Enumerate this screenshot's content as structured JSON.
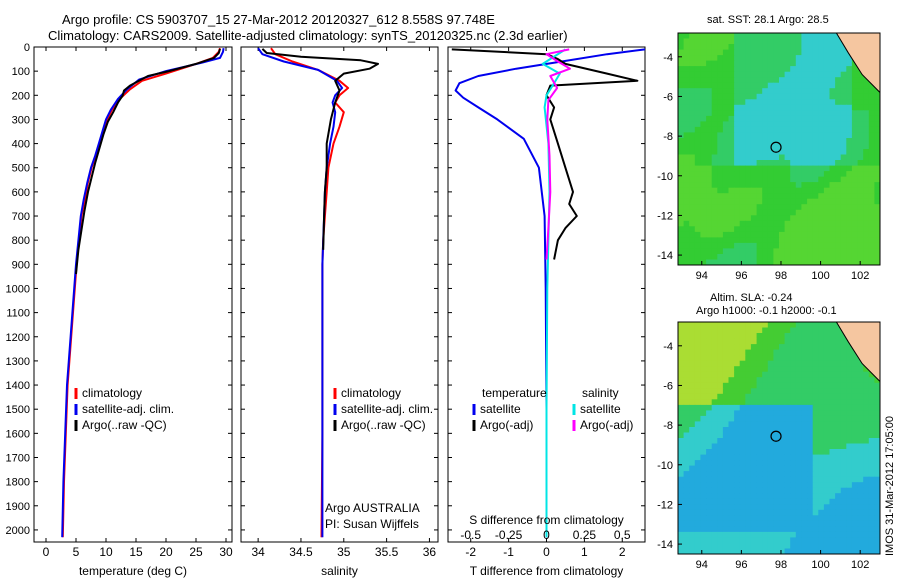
{
  "header": {
    "line1": "Argo profile: CS 5903707_15 27-Mar-2012 20120327_612 8.558S 97.748E",
    "line2": "Climatology: CARS2009. Satellite-adjusted climatology: synTS_20120325.nc (2.3d earlier)"
  },
  "side_stamp": "IMOS 31-Mar-2012 17:05:00",
  "colors": {
    "climatology": "#ff0000",
    "satellite": "#0000ee",
    "argo": "#000000",
    "salinity_satellite": "#00e5e5",
    "salinity_argo": "#ff00ff",
    "map_green": "#33cc33",
    "map_cyan": "#33cccc",
    "land": "#f5c6a0"
  },
  "chart_data": [
    {
      "type": "line",
      "panel": "temperature",
      "xlabel": "temperature (deg C)",
      "ylabel": "",
      "xlim": [
        -2,
        31
      ],
      "ylim": [
        2050,
        0
      ],
      "xticks": [
        0,
        5,
        10,
        15,
        20,
        25,
        30
      ],
      "yticks": [
        0,
        100,
        200,
        300,
        400,
        500,
        600,
        700,
        800,
        900,
        1000,
        1100,
        1200,
        1300,
        1400,
        1500,
        1600,
        1700,
        1800,
        1900,
        2000
      ],
      "legend": [
        "climatology",
        "satellite-adj. clim.",
        "Argo(..raw -QC)"
      ],
      "series": [
        {
          "name": "climatology",
          "color_key": "climatology",
          "x": [
            29.0,
            28.8,
            27.8,
            25.0,
            20.0,
            16.0,
            14.0,
            12.3,
            11.0,
            10.2,
            9.5,
            8.9,
            8.3,
            7.6,
            7.0,
            6.5,
            5.9,
            5.5,
            5.1,
            4.8,
            4.5,
            4.2,
            3.9,
            3.6,
            3.3,
            3.0,
            2.8
          ],
          "y": [
            5,
            20,
            45,
            70,
            110,
            140,
            175,
            215,
            260,
            300,
            350,
            400,
            450,
            500,
            560,
            630,
            700,
            800,
            900,
            1000,
            1100,
            1200,
            1300,
            1400,
            1600,
            1800,
            2030
          ]
        },
        {
          "name": "satellite-adj. clim.",
          "color_key": "satellite",
          "x": [
            29.6,
            29.5,
            29.0,
            26.0,
            20.0,
            15.5,
            13.5,
            12.0,
            10.8,
            10.0,
            9.4,
            8.8,
            8.2,
            7.5,
            6.9,
            6.3,
            5.8,
            5.4,
            5.0,
            4.7,
            4.4,
            4.1,
            3.8,
            3.5,
            3.2,
            2.9,
            2.7
          ],
          "y": [
            5,
            20,
            45,
            65,
            100,
            135,
            175,
            215,
            260,
            300,
            350,
            400,
            450,
            500,
            560,
            630,
            700,
            800,
            900,
            1000,
            1100,
            1200,
            1300,
            1400,
            1600,
            1800,
            2030
          ]
        },
        {
          "name": "Argo(..raw -QC)",
          "color_key": "argo",
          "x": [
            29.0,
            28.8,
            28.0,
            25.0,
            20.5,
            17.0,
            15.5,
            14.0,
            13.0,
            12.8,
            12.0,
            11.2,
            10.3,
            9.6,
            8.9,
            8.2,
            7.6,
            7.0,
            6.4,
            5.9,
            5.4,
            5.0
          ],
          "y": [
            8,
            25,
            45,
            70,
            100,
            120,
            140,
            160,
            180,
            200,
            230,
            270,
            310,
            360,
            420,
            480,
            540,
            600,
            680,
            760,
            840,
            940
          ]
        }
      ]
    },
    {
      "type": "line",
      "panel": "salinity",
      "xlabel": "salinity",
      "ylabel": "",
      "xlim": [
        33.8,
        36.1
      ],
      "ylim": [
        2050,
        0
      ],
      "xticks": [
        34,
        34.5,
        35,
        35.5,
        36
      ],
      "legend": [
        "climatology",
        "satellite-adj. clim.",
        "Argo(..raw -QC)"
      ],
      "annotations": [
        "Argo AUSTRALIA",
        "PI: Susan Wijffels"
      ],
      "series": [
        {
          "name": "climatology",
          "color_key": "climatology",
          "x": [
            34.15,
            34.2,
            34.4,
            34.7,
            34.95,
            35.05,
            34.95,
            34.9,
            35.0,
            34.95,
            34.88,
            34.82,
            34.8,
            34.78,
            34.76,
            34.75,
            34.75,
            34.75,
            34.74
          ],
          "y": [
            5,
            30,
            60,
            95,
            140,
            170,
            200,
            230,
            270,
            330,
            400,
            500,
            600,
            700,
            800,
            900,
            1200,
            1600,
            2030
          ]
        },
        {
          "name": "satellite-adj. clim.",
          "color_key": "satellite",
          "x": [
            34.0,
            34.05,
            34.3,
            34.7,
            34.92,
            34.98,
            34.9,
            34.87,
            34.9,
            34.88,
            34.84,
            34.8,
            34.78,
            34.77,
            34.76,
            34.75,
            34.75,
            34.75,
            34.75
          ],
          "y": [
            5,
            30,
            60,
            95,
            140,
            170,
            200,
            230,
            270,
            330,
            400,
            500,
            600,
            700,
            800,
            900,
            1200,
            1600,
            2030
          ]
        },
        {
          "name": "Argo(..raw -QC)",
          "color_key": "argo",
          "x": [
            34.05,
            34.1,
            34.5,
            35.2,
            35.4,
            35.3,
            35.0,
            34.9,
            34.95,
            34.9,
            34.85,
            34.8,
            34.8,
            34.78,
            34.77,
            34.76
          ],
          "y": [
            8,
            25,
            40,
            55,
            70,
            90,
            110,
            140,
            180,
            230,
            300,
            400,
            500,
            600,
            700,
            840
          ]
        }
      ]
    },
    {
      "type": "line",
      "panel": "difference",
      "xlabel": "T difference from climatology",
      "xlabel_top": "S difference from climatology",
      "xlim": [
        -2.6,
        2.6
      ],
      "ylim": [
        2050,
        0
      ],
      "xticks": [
        -2,
        -1,
        0,
        1,
        2
      ],
      "xticks_top": [
        -0.5,
        -0.25,
        0,
        0.25,
        0.5
      ],
      "legend_groups": [
        "temperature",
        "salinity"
      ],
      "legend": [
        "satellite",
        "Argo(-adj)",
        "satellite",
        "Argo(-adj)"
      ],
      "series": [
        {
          "name": "satellite",
          "group": "temperature",
          "color_key": "satellite",
          "x": [
            2.6,
            1.6,
            0.4,
            -0.8,
            -1.8,
            -2.3,
            -2.4,
            -2.2,
            -1.8,
            -1.3,
            -0.6,
            -0.2,
            -0.05,
            -0.02,
            0.0,
            0.0
          ],
          "y": [
            10,
            30,
            60,
            90,
            120,
            150,
            180,
            210,
            250,
            300,
            380,
            500,
            700,
            1000,
            1500,
            2030
          ]
        },
        {
          "name": "Argo(-adj)",
          "group": "temperature",
          "color_key": "argo",
          "x": [
            -2.5,
            0.0,
            0.3,
            0.5,
            1.6,
            2.4,
            0.1,
            0.0,
            0.2,
            0.1,
            0.3,
            0.5,
            0.7,
            0.6,
            0.8,
            0.5,
            0.3,
            0.2
          ],
          "y": [
            10,
            30,
            50,
            70,
            110,
            140,
            160,
            200,
            250,
            300,
            400,
            500,
            600,
            650,
            700,
            750,
            800,
            880
          ]
        },
        {
          "name": "satellite",
          "group": "salinity",
          "color_key": "salinity_satellite",
          "x": [
            0.5,
            -0.1,
            0.35,
            0.2,
            0.0,
            -0.05,
            0.05,
            0.08,
            0.05,
            0.02,
            0.0,
            0.0
          ],
          "y": [
            10,
            70,
            110,
            150,
            200,
            250,
            400,
            600,
            800,
            1000,
            1500,
            2030
          ]
        },
        {
          "name": "Argo(-adj)",
          "group": "salinity",
          "color_key": "salinity_argo",
          "x": [
            0.6,
            0.0,
            0.3,
            0.62,
            0.1,
            0.28,
            0.05,
            0.02,
            0.08,
            0.1,
            0.05,
            0.0
          ],
          "y": [
            10,
            30,
            60,
            90,
            120,
            170,
            220,
            300,
            450,
            600,
            750,
            880
          ]
        }
      ]
    },
    {
      "type": "heatmap",
      "panel": "sst-map",
      "title": "sat. SST: 28.1  Argo: 28.5",
      "xlim": [
        92.8,
        103
      ],
      "ylim": [
        -14.5,
        -2.8
      ],
      "xticks": [
        94,
        96,
        98,
        100,
        102
      ],
      "yticks": [
        -4,
        -6,
        -8,
        -10,
        -12,
        -14
      ],
      "marker": {
        "lon": 97.75,
        "lat": -8.56
      }
    },
    {
      "type": "heatmap",
      "panel": "sla-map",
      "title_lines": [
        "Altim. SLA: -0.24",
        "Argo h1000: -0.1  h2000: -0.1"
      ],
      "xlim": [
        92.8,
        103
      ],
      "ylim": [
        -14.5,
        -2.8
      ],
      "xticks": [
        94,
        96,
        98,
        100,
        102
      ],
      "yticks": [
        -4,
        -6,
        -8,
        -10,
        -12,
        -14
      ],
      "marker": {
        "lon": 97.75,
        "lat": -8.56
      }
    }
  ]
}
